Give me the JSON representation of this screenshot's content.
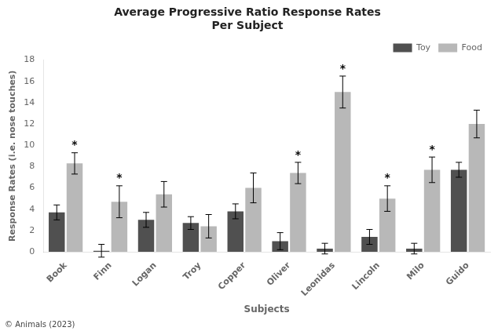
{
  "chart_data": {
    "type": "bar",
    "title": "Average Progressive Ratio Response Rates\nPer Subject",
    "xlabel": "Subjects",
    "ylabel": "Response Rates (i.e. nose touches)",
    "categories": [
      "Book",
      "Finn",
      "Logan",
      "Troy",
      "Copper",
      "Oliver",
      "Leonidas",
      "Lincoln",
      "Milo",
      "Guido"
    ],
    "series": [
      {
        "name": "Toy",
        "color": "#505050",
        "values": [
          3.7,
          0.1,
          3.0,
          2.7,
          3.8,
          1.0,
          0.3,
          1.4,
          0.3,
          7.7
        ],
        "errors": [
          0.7,
          0.6,
          0.7,
          0.6,
          0.7,
          0.8,
          0.5,
          0.7,
          0.5,
          0.7
        ]
      },
      {
        "name": "Food",
        "color": "#b8b8b8",
        "values": [
          8.3,
          4.7,
          5.4,
          2.4,
          6.0,
          7.4,
          15.0,
          5.0,
          7.7,
          12.0
        ],
        "errors": [
          1.0,
          1.5,
          1.2,
          1.1,
          1.4,
          1.0,
          1.5,
          1.2,
          1.2,
          1.3
        ]
      }
    ],
    "annotations": [
      {
        "text": "*",
        "category": "Book",
        "series": "Food"
      },
      {
        "text": "*",
        "category": "Finn",
        "series": "Food"
      },
      {
        "text": "*",
        "category": "Oliver",
        "series": "Food"
      },
      {
        "text": "*",
        "category": "Leonidas",
        "series": "Food"
      },
      {
        "text": "*",
        "category": "Lincoln",
        "series": "Food"
      },
      {
        "text": "*",
        "category": "Milo",
        "series": "Food"
      }
    ],
    "caption": "© Animals (2023)",
    "ylim": [
      0,
      18
    ],
    "yticks": [
      0,
      2,
      4,
      6,
      8,
      10,
      12,
      14,
      16,
      18
    ],
    "grid": false,
    "legend": "upper right"
  }
}
